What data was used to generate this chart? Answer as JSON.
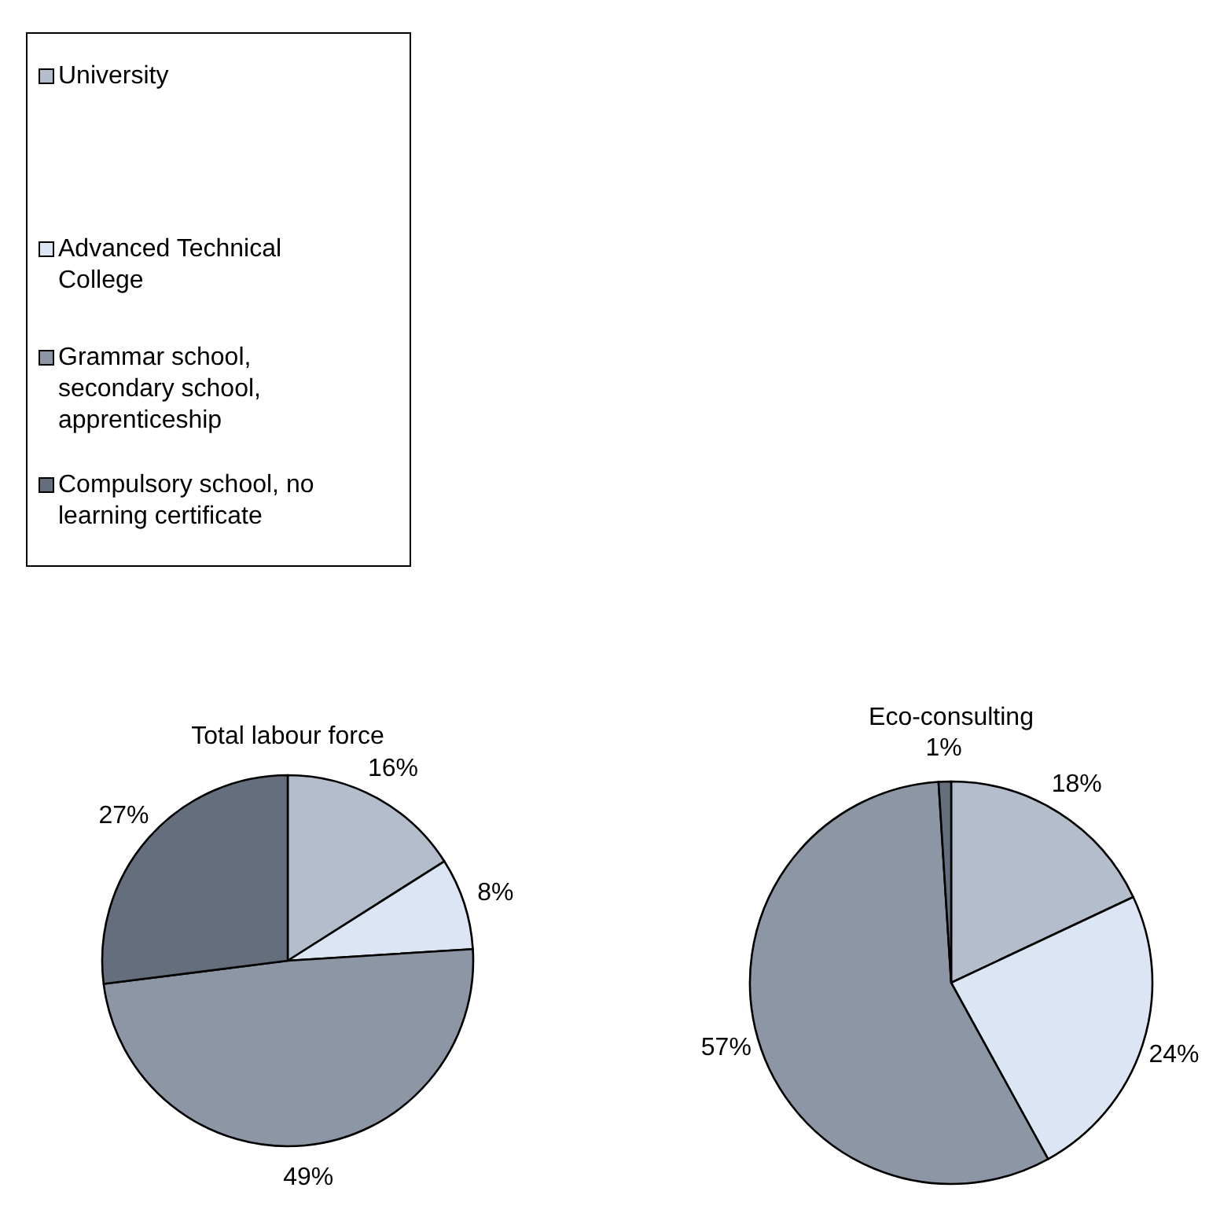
{
  "chart_data": [
    {
      "type": "pie",
      "title": "Total labour force",
      "categories": [
        "University",
        "Advanced Technical College",
        "Grammar school, secondary school, apprenticeship",
        "Compulsory school, no learning certificate"
      ],
      "values": [
        16,
        8,
        49,
        27
      ],
      "value_labels": [
        "16%",
        "8%",
        "49%",
        "27%"
      ],
      "colors": [
        "#b4bdcc",
        "#dce5f3",
        "#8d96a5",
        "#656e7c"
      ],
      "legend": "top left"
    },
    {
      "type": "pie",
      "title": "Eco-consulting",
      "categories": [
        null,
        null,
        null,
        null
      ],
      "values": [
        18,
        24,
        57,
        1
      ],
      "value_labels": [
        "18%",
        "24%",
        "57%",
        "1%"
      ],
      "colors": [
        "#b4bdcc",
        "#dce5f3",
        "#8d96a5",
        "#656e7c"
      ],
      "legend": false
    }
  ]
}
